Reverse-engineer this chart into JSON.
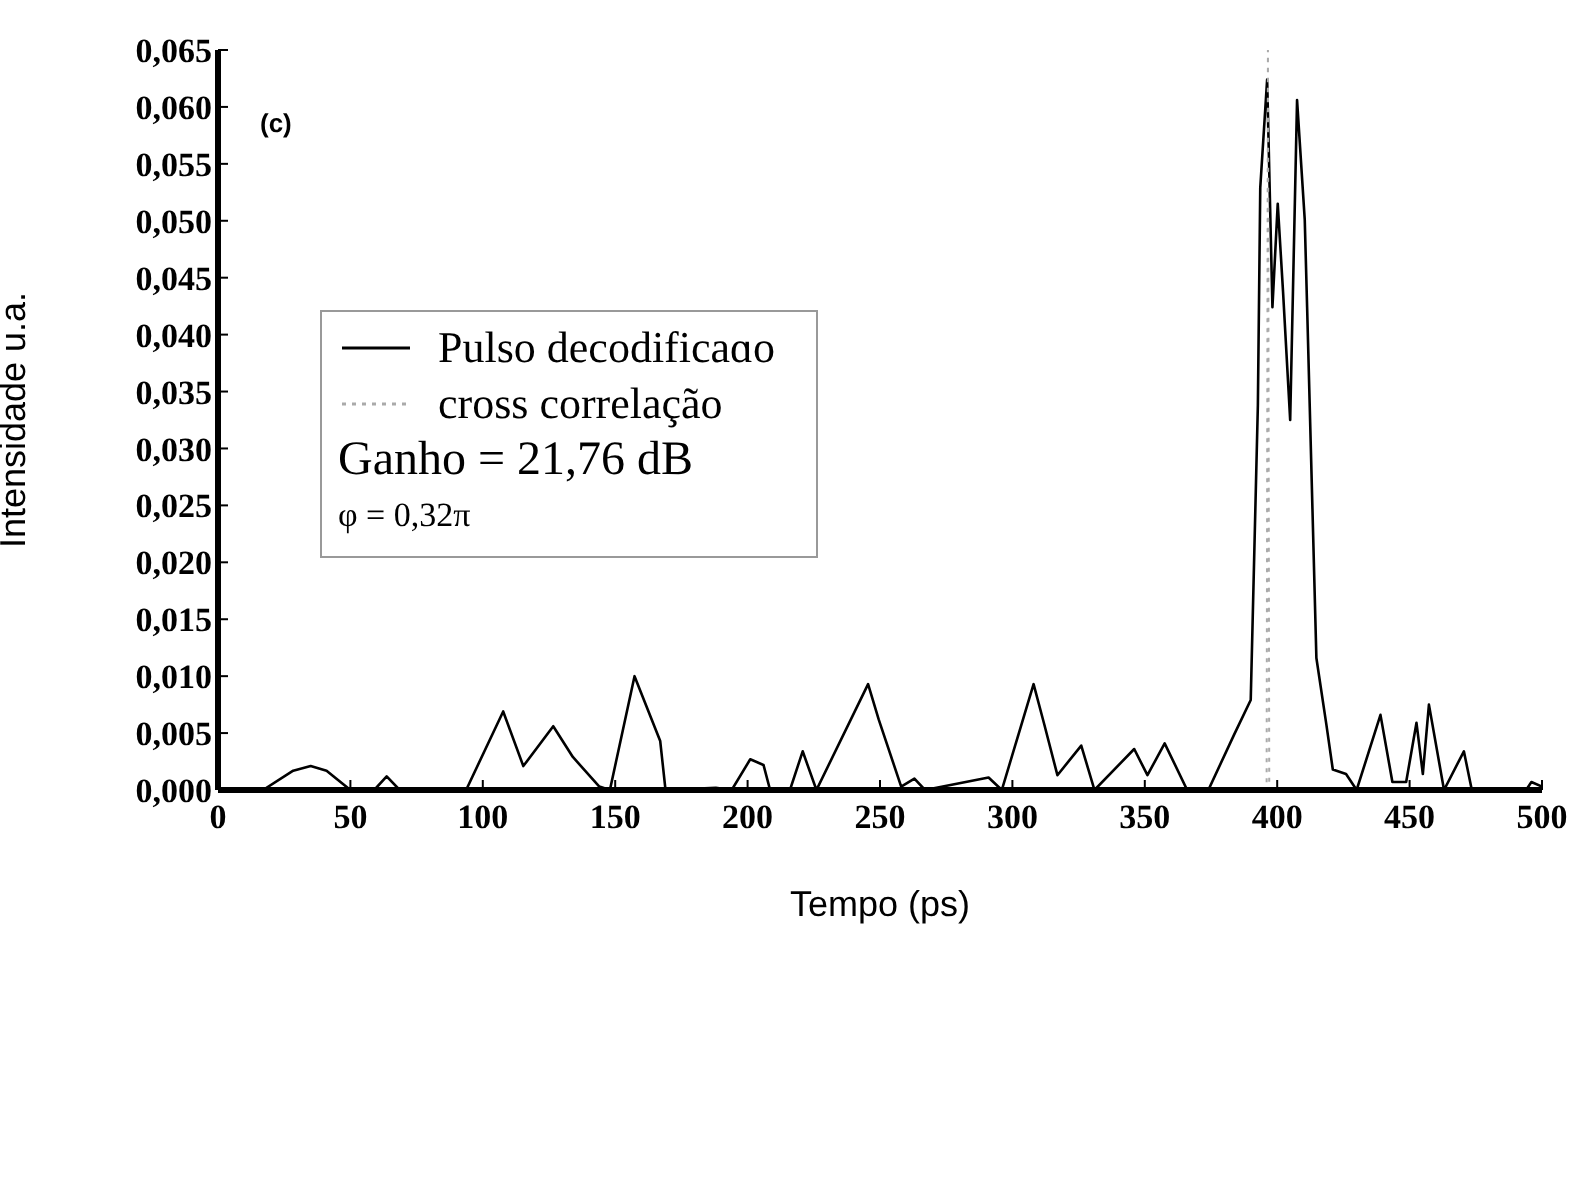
{
  "chart_data": {
    "type": "line",
    "xlabel": "Tempo (ps)",
    "ylabel": "Intensidade u.a.",
    "annotations": [
      "(c)",
      "Ganho = 21,76 dB",
      "φ = 0,32π"
    ],
    "xlim": [
      0,
      500
    ],
    "xticks": [
      0,
      50,
      100,
      150,
      200,
      250,
      300,
      350,
      400,
      450,
      500
    ],
    "ylim": [
      0,
      0.065
    ],
    "yticks": [
      {
        "value": 0,
        "label": "0,000"
      },
      {
        "value": 0.005,
        "label": "0,005"
      },
      {
        "value": 0.01,
        "label": "0,010"
      },
      {
        "value": 0.015,
        "label": "0,015"
      },
      {
        "value": 0.02,
        "label": "0,020"
      },
      {
        "value": 0.025,
        "label": "0,025"
      },
      {
        "value": 0.03,
        "label": "0,030"
      },
      {
        "value": 0.035,
        "label": "0,035"
      },
      {
        "value": 0.04,
        "label": "0,040"
      },
      {
        "value": 0.045,
        "label": "0,045"
      },
      {
        "value": 0.05,
        "label": "0,050"
      },
      {
        "value": 0.055,
        "label": "0,055"
      },
      {
        "value": 0.06,
        "label": "0,060"
      },
      {
        "value": 0.065,
        "label": "0,065"
      }
    ],
    "legend": "top left",
    "marker": "none",
    "series": [
      {
        "name": "Pulso decodificaɑo",
        "color": "#000000",
        "line_style": "solid",
        "x": [
          0,
          17,
          28.4,
          35,
          41,
          50,
          59,
          63.7,
          68.6,
          93.7,
          107.7,
          115.3,
          126.6,
          134,
          144,
          148,
          157.3,
          167,
          169,
          188,
          194,
          201,
          206,
          208.5,
          216,
          220.8,
          226,
          245.5,
          249.5,
          258,
          263,
          267,
          291,
          296,
          308,
          312,
          317,
          326,
          331,
          346,
          351,
          357.5,
          366,
          374,
          383.6,
          390,
          392.7,
          393.6,
          396.2,
          398.2,
          400.2,
          402.2,
          404.9,
          407.5,
          410.4,
          411.3,
          414.8,
          418.6,
          421,
          426,
          430,
          439,
          443.5,
          448.7,
          452.6,
          455,
          457.3,
          463,
          470.5,
          473.5,
          494,
          496,
          500
        ],
        "values": [
          0,
          0,
          0.0017,
          0.0021,
          0.0017,
          0,
          0,
          0.0012,
          0,
          0,
          0.0069,
          0.0021,
          0.0056,
          0.0029,
          0.0003,
          0,
          0.01,
          0.0043,
          0,
          0.0002,
          0,
          0.0027,
          0.0022,
          0,
          0,
          0.0034,
          0,
          0.0093,
          0.0062,
          0.0003,
          0.001,
          0,
          0.0011,
          0,
          0.0093,
          0.0058,
          0.0013,
          0.0039,
          0,
          0.0036,
          0.0013,
          0.0041,
          0,
          0,
          0.0048,
          0.0079,
          0.0338,
          0.0529,
          0.0624,
          0.0424,
          0.0515,
          0.0438,
          0.0325,
          0.0606,
          0.0501,
          0.0424,
          0.0116,
          0.0057,
          0.0018,
          0.0014,
          0,
          0.0066,
          0.0007,
          0.0007,
          0.0059,
          0.0014,
          0.0075,
          0,
          0.0034,
          0,
          0,
          0.0007,
          0.0003
        ]
      },
      {
        "name": "cross correlação",
        "color": "#aaaaaa",
        "line_style": "dotted",
        "x": [
          380,
          396,
          396.5,
          397,
          420
        ],
        "values": [
          0,
          0,
          0.065,
          0,
          0
        ]
      }
    ]
  }
}
